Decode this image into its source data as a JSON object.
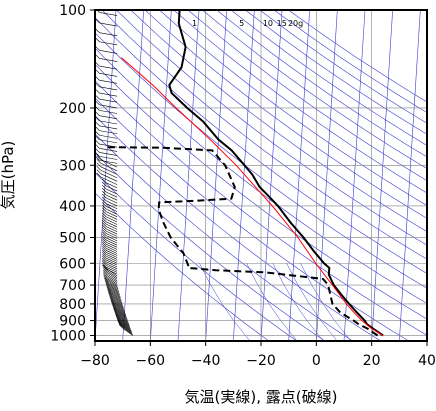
{
  "chart_data": {
    "type": "line",
    "subtype": "skew-T log-p thermodynamic diagram",
    "xlabel": "気温(実線), 露点(破線)",
    "ylabel": "気圧(hPa)",
    "x_ticks": [
      -80,
      -60,
      -40,
      -20,
      0,
      20,
      40
    ],
    "y_ticks": [
      100,
      200,
      300,
      400,
      500,
      600,
      700,
      800,
      900,
      1000
    ],
    "x_range": [
      -80,
      40
    ],
    "y_range": [
      1040,
      100
    ],
    "y_scale": "log (inverted)",
    "grid": true,
    "mixing_ratio_labels": [
      "1",
      "5",
      "10",
      "15",
      "20g"
    ],
    "mixing_ratio_label_positions": [
      -44,
      -27,
      -17.5,
      -12.5,
      -7.5
    ],
    "mixing_ratio_values": [
      1,
      5,
      10,
      15,
      20
    ],
    "colors": {
      "temperature": "#000000",
      "dewpoint": "#000000",
      "parcel": "#ff0000",
      "background_lines": "#3b3bd6",
      "grid": "#808080",
      "wind_barbs": "#000000"
    },
    "series": [
      {
        "key": "temperature",
        "style": "solid",
        "points": [
          {
            "p": 1000,
            "t": 24
          },
          {
            "p": 950,
            "t": 20
          },
          {
            "p": 925,
            "t": 18
          },
          {
            "p": 900,
            "t": 17
          },
          {
            "p": 850,
            "t": 14
          },
          {
            "p": 800,
            "t": 11
          },
          {
            "p": 750,
            "t": 8
          },
          {
            "p": 700,
            "t": 5
          },
          {
            "p": 650,
            "t": 3
          },
          {
            "p": 620,
            "t": 3
          },
          {
            "p": 600,
            "t": 1
          },
          {
            "p": 550,
            "t": -3
          },
          {
            "p": 500,
            "t": -7
          },
          {
            "p": 450,
            "t": -12
          },
          {
            "p": 400,
            "t": -17
          },
          {
            "p": 370,
            "t": -21
          },
          {
            "p": 350,
            "t": -24
          },
          {
            "p": 320,
            "t": -27
          },
          {
            "p": 300,
            "t": -30
          },
          {
            "p": 270,
            "t": -35
          },
          {
            "p": 250,
            "t": -40
          },
          {
            "p": 220,
            "t": -46
          },
          {
            "p": 200,
            "t": -52
          },
          {
            "p": 180,
            "t": -58
          },
          {
            "p": 170,
            "t": -59
          },
          {
            "p": 150,
            "t": -55
          },
          {
            "p": 130,
            "t": -54
          },
          {
            "p": 110,
            "t": -57
          },
          {
            "p": 100,
            "t": -57
          }
        ]
      },
      {
        "key": "dewpoint",
        "style": "dashed",
        "points": [
          {
            "p": 1000,
            "t": 22
          },
          {
            "p": 950,
            "t": 18
          },
          {
            "p": 925,
            "t": 15
          },
          {
            "p": 900,
            "t": 13
          },
          {
            "p": 850,
            "t": 8
          },
          {
            "p": 800,
            "t": 5
          },
          {
            "p": 750,
            "t": 4
          },
          {
            "p": 700,
            "t": 3
          },
          {
            "p": 670,
            "t": 1
          },
          {
            "p": 640,
            "t": -20
          },
          {
            "p": 630,
            "t": -38
          },
          {
            "p": 620,
            "t": -48
          },
          {
            "p": 610,
            "t": -48
          },
          {
            "p": 560,
            "t": -50
          },
          {
            "p": 500,
            "t": -55
          },
          {
            "p": 450,
            "t": -58
          },
          {
            "p": 410,
            "t": -60
          },
          {
            "p": 390,
            "t": -60
          },
          {
            "p": 385,
            "t": -45
          },
          {
            "p": 380,
            "t": -34
          },
          {
            "p": 350,
            "t": -33
          },
          {
            "p": 300,
            "t": -37
          },
          {
            "p": 270,
            "t": -42
          },
          {
            "p": 265,
            "t": -60
          },
          {
            "p": 264,
            "t": -80
          }
        ]
      },
      {
        "key": "parcel",
        "style": "solid",
        "points": [
          {
            "p": 1000,
            "t": 24
          },
          {
            "p": 950,
            "t": 19.5
          },
          {
            "p": 900,
            "t": 16
          },
          {
            "p": 850,
            "t": 13
          },
          {
            "p": 800,
            "t": 10
          },
          {
            "p": 700,
            "t": 4.5
          },
          {
            "p": 600,
            "t": -2
          },
          {
            "p": 500,
            "t": -9
          },
          {
            "p": 400,
            "t": -19
          },
          {
            "p": 300,
            "t": -33
          },
          {
            "p": 250,
            "t": -43
          },
          {
            "p": 200,
            "t": -56
          },
          {
            "p": 170,
            "t": -65
          },
          {
            "p": 140,
            "t": -77
          }
        ]
      }
    ]
  }
}
